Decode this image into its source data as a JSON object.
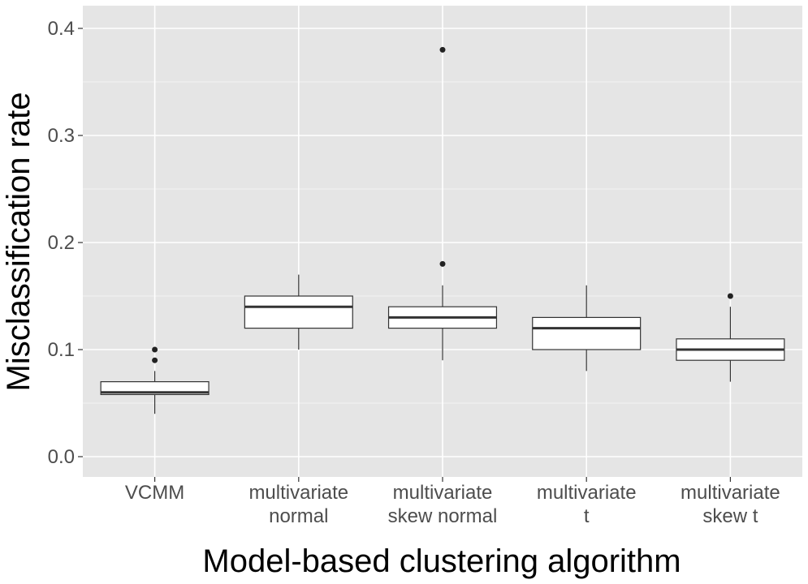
{
  "chart_data": {
    "type": "boxplot",
    "title": "",
    "xlabel": "Model-based clustering algorithm",
    "ylabel": "Misclassification rate",
    "ylim": [
      -0.02,
      0.42
    ],
    "yticks": [
      "0.0",
      "0.1",
      "0.2",
      "0.3",
      "0.4"
    ],
    "ytick_values": [
      0.0,
      0.1,
      0.2,
      0.3,
      0.4
    ],
    "categories": [
      {
        "lines": [
          "VCMM"
        ]
      },
      {
        "lines": [
          "multivariate",
          "normal"
        ]
      },
      {
        "lines": [
          "multivariate",
          "skew normal"
        ]
      },
      {
        "lines": [
          "multivariate",
          "t"
        ]
      },
      {
        "lines": [
          "multivariate",
          "skew t"
        ]
      }
    ],
    "boxes": [
      {
        "name": "VCMM",
        "whisker_low": 0.04,
        "q1": 0.058,
        "median": 0.06,
        "q3": 0.07,
        "whisker_high": 0.08,
        "outliers": [
          0.09,
          0.1
        ]
      },
      {
        "name": "multivariate normal",
        "whisker_low": 0.1,
        "q1": 0.12,
        "median": 0.14,
        "q3": 0.15,
        "whisker_high": 0.17,
        "outliers": []
      },
      {
        "name": "multivariate skew normal",
        "whisker_low": 0.09,
        "q1": 0.12,
        "median": 0.13,
        "q3": 0.14,
        "whisker_high": 0.16,
        "outliers": [
          0.18,
          0.38
        ]
      },
      {
        "name": "multivariate t",
        "whisker_low": 0.08,
        "q1": 0.1,
        "median": 0.12,
        "q3": 0.13,
        "whisker_high": 0.16,
        "outliers": []
      },
      {
        "name": "multivariate skew t",
        "whisker_low": 0.07,
        "q1": 0.09,
        "median": 0.1,
        "q3": 0.11,
        "whisker_high": 0.14,
        "outliers": [
          0.15
        ]
      }
    ],
    "colors": {
      "panel": "#e5e5e5",
      "grid_major": "#ffffff",
      "grid_minor": "#f2f2f2",
      "box_fill": "#ffffff",
      "box_line": "#333333",
      "outlier": "#222222"
    }
  }
}
